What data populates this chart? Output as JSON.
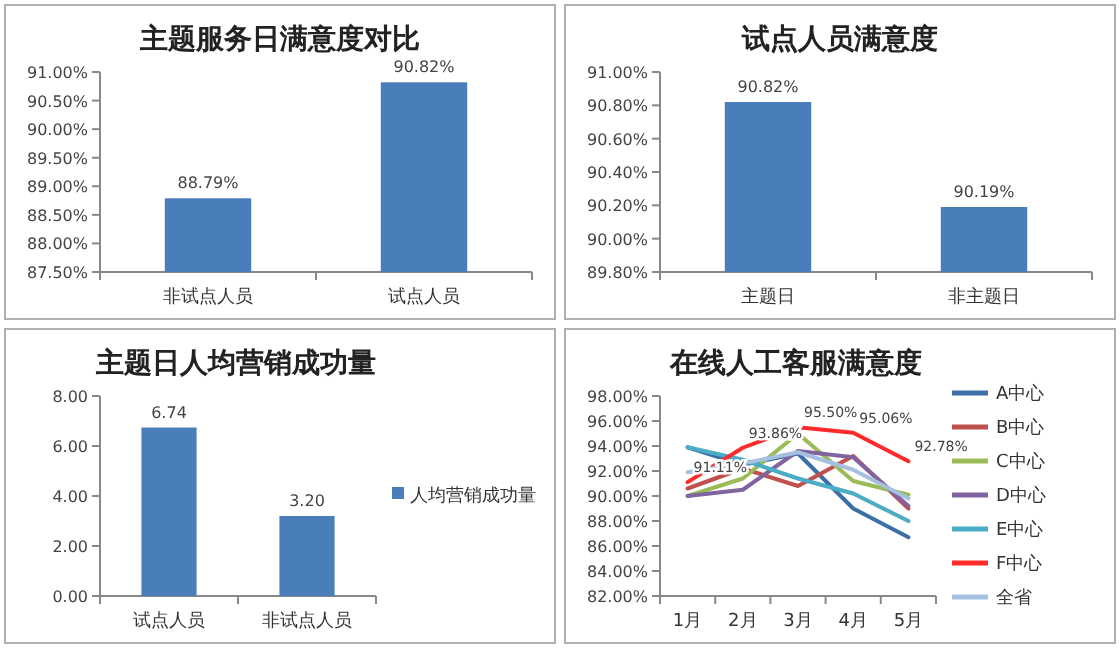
{
  "chart_data": [
    {
      "type": "bar",
      "title": "主题服务日满意度对比",
      "categories": [
        "非试点人员",
        "试点人员"
      ],
      "values": [
        88.79,
        90.82
      ],
      "value_labels": [
        "88.79%",
        "90.82%"
      ],
      "color": "#4a7ebb",
      "ylim": [
        87.5,
        91
      ],
      "yticks": [
        {
          "value": 87.5,
          "label": "87.50%"
        },
        {
          "value": 88,
          "label": "88.00%"
        },
        {
          "value": 88.5,
          "label": "88.50%"
        },
        {
          "value": 89,
          "label": "89.00%"
        },
        {
          "value": 89.5,
          "label": "89.50%"
        },
        {
          "value": 90,
          "label": "90.00%"
        },
        {
          "value": 90.5,
          "label": "90.50%"
        },
        {
          "value": 91,
          "label": "91.00%"
        }
      ],
      "grid": false,
      "legend": false
    },
    {
      "type": "bar",
      "title": "试点人员满意度",
      "categories": [
        "主题日",
        "非主题日"
      ],
      "values": [
        90.82,
        90.19
      ],
      "value_labels": [
        "90.82%",
        "90.19%"
      ],
      "color": "#4a7ebb",
      "ylim": [
        89.8,
        91
      ],
      "yticks": [
        {
          "value": 89.8,
          "label": "89.80%"
        },
        {
          "value": 90,
          "label": "90.00%"
        },
        {
          "value": 90.2,
          "label": "90.20%"
        },
        {
          "value": 90.4,
          "label": "90.40%"
        },
        {
          "value": 90.6,
          "label": "90.60%"
        },
        {
          "value": 90.8,
          "label": "90.80%"
        },
        {
          "value": 91,
          "label": "91.00%"
        }
      ],
      "grid": false,
      "legend": false
    },
    {
      "type": "bar",
      "title": "主题日人均营销成功量",
      "categories": [
        "试点人员",
        "非试点人员"
      ],
      "series": [
        {
          "name": "人均营销成功量",
          "color": "#4a7ebb",
          "values": [
            6.74,
            3.2
          ],
          "value_labels": [
            "6.74",
            "3.20"
          ]
        }
      ],
      "ylim": [
        0,
        8
      ],
      "yticks": [
        {
          "value": 0,
          "label": "0.00"
        },
        {
          "value": 2,
          "label": "2.00"
        },
        {
          "value": 4,
          "label": "4.00"
        },
        {
          "value": 6,
          "label": "6.00"
        },
        {
          "value": 8,
          "label": "8.00"
        }
      ],
      "grid": false,
      "legend": "right"
    },
    {
      "type": "line",
      "title": "在线人工客服满意度",
      "categories": [
        "1月",
        "2月",
        "3月",
        "4月",
        "5月"
      ],
      "series": [
        {
          "name": "A中心",
          "color": "#3c6fa8",
          "values": [
            93.9,
            92.5,
            93.4,
            89.0,
            86.7
          ]
        },
        {
          "name": "B中心",
          "color": "#c0504d",
          "values": [
            90.6,
            92.2,
            90.8,
            93.2,
            89.0
          ]
        },
        {
          "name": "C中心",
          "color": "#9bbb59",
          "values": [
            90.0,
            91.4,
            95.0,
            91.2,
            90.1
          ]
        },
        {
          "name": "D中心",
          "color": "#8064a2",
          "values": [
            90.0,
            90.5,
            93.6,
            93.1,
            89.2
          ]
        },
        {
          "name": "E中心",
          "color": "#4bacc6",
          "values": [
            93.9,
            92.9,
            91.4,
            90.2,
            88.0
          ]
        },
        {
          "name": "F中心",
          "color": "#ff2a2a",
          "values": [
            91.11,
            93.86,
            95.5,
            95.06,
            92.78
          ],
          "value_labels": [
            "91.11%",
            "93.86%",
            "95.50%",
            "95.06%",
            "92.78%"
          ]
        },
        {
          "name": "全省",
          "color": "#a5c0e0",
          "values": [
            91.9,
            92.6,
            93.5,
            92.1,
            89.8
          ]
        }
      ],
      "ylim": [
        82,
        98
      ],
      "yticks": [
        {
          "value": 82,
          "label": "82.00%"
        },
        {
          "value": 84,
          "label": "84.00%"
        },
        {
          "value": 86,
          "label": "86.00%"
        },
        {
          "value": 88,
          "label": "88.00%"
        },
        {
          "value": 90,
          "label": "90.00%"
        },
        {
          "value": 92,
          "label": "92.00%"
        },
        {
          "value": 94,
          "label": "94.00%"
        },
        {
          "value": 96,
          "label": "96.00%"
        },
        {
          "value": 98,
          "label": "98.00%"
        }
      ],
      "grid": false,
      "legend": "right"
    }
  ]
}
